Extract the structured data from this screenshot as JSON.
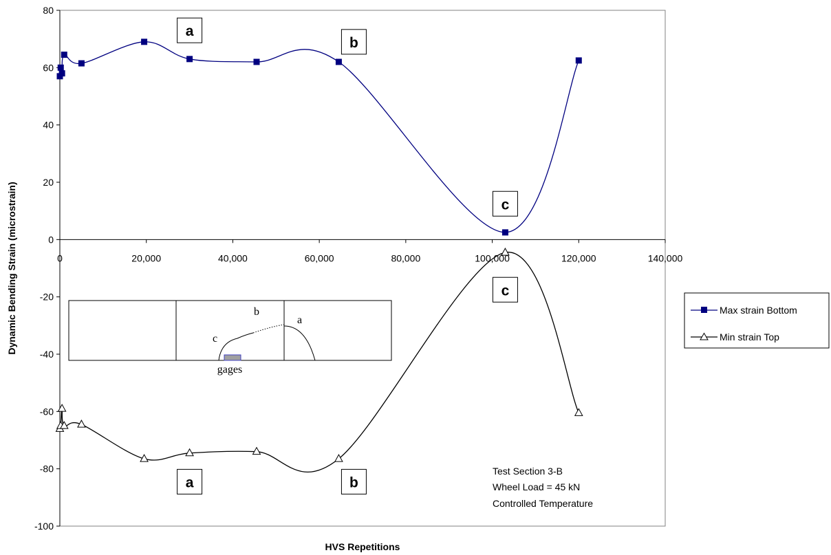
{
  "chart_data": {
    "type": "line",
    "xlabel": "HVS Repetitions",
    "ylabel": "Dynamic Bending Strain (microstrain)",
    "xlim": [
      0,
      140000
    ],
    "ylim": [
      -100,
      80
    ],
    "x_ticks": [
      0,
      20000,
      40000,
      60000,
      80000,
      100000,
      120000,
      140000
    ],
    "x_tick_labels": [
      "0",
      "20,000",
      "40,000",
      "60,000",
      "80,000",
      "100,000",
      "120,000",
      "140,000"
    ],
    "y_ticks": [
      -100,
      -80,
      -60,
      -40,
      -20,
      0,
      20,
      40,
      60,
      80
    ],
    "y_tick_labels": [
      "-100",
      "-80",
      "-60",
      "-40",
      "-20",
      "0",
      "20",
      "40",
      "60",
      "80"
    ],
    "x_axis_at_y": 0,
    "grid": false,
    "legend_position": "right",
    "series": [
      {
        "name": "Max strain Bottom",
        "marker": "square",
        "color": "#000080",
        "points": [
          [
            0,
            57
          ],
          [
            200,
            60
          ],
          [
            500,
            58
          ],
          [
            1000,
            64.5
          ],
          [
            5000,
            61.5
          ],
          [
            19500,
            69
          ],
          [
            30000,
            63
          ],
          [
            45500,
            62
          ],
          [
            64500,
            62
          ],
          [
            103000,
            2.5
          ],
          [
            120000,
            62.5
          ]
        ]
      },
      {
        "name": "Min strain Top",
        "marker": "triangle",
        "color": "#000000",
        "points": [
          [
            0,
            -66
          ],
          [
            200,
            -65
          ],
          [
            500,
            -59
          ],
          [
            1000,
            -65
          ],
          [
            5000,
            -64.5
          ],
          [
            19500,
            -76.5
          ],
          [
            30000,
            -74.5
          ],
          [
            45500,
            -74
          ],
          [
            64500,
            -76.5
          ],
          [
            103000,
            -4.5
          ],
          [
            120000,
            -60.5
          ]
        ]
      }
    ],
    "annotations": [
      {
        "label": "a",
        "x": 30000,
        "y": 73
      },
      {
        "label": "b",
        "x": 68000,
        "y": 69
      },
      {
        "label": "c",
        "x": 103000,
        "y": 12.5
      },
      {
        "label": "c",
        "x": 103000,
        "y": -17.5
      },
      {
        "label": "a",
        "x": 30000,
        "y": -84.5
      },
      {
        "label": "b",
        "x": 68000,
        "y": -84.5
      }
    ],
    "notes": [
      "Test Section 3-B",
      "Wheel Load = 45 kN",
      "Controlled Temperature"
    ],
    "inset": {
      "crack_labels": [
        "a",
        "b",
        "c"
      ],
      "gage_label": "gages"
    }
  }
}
